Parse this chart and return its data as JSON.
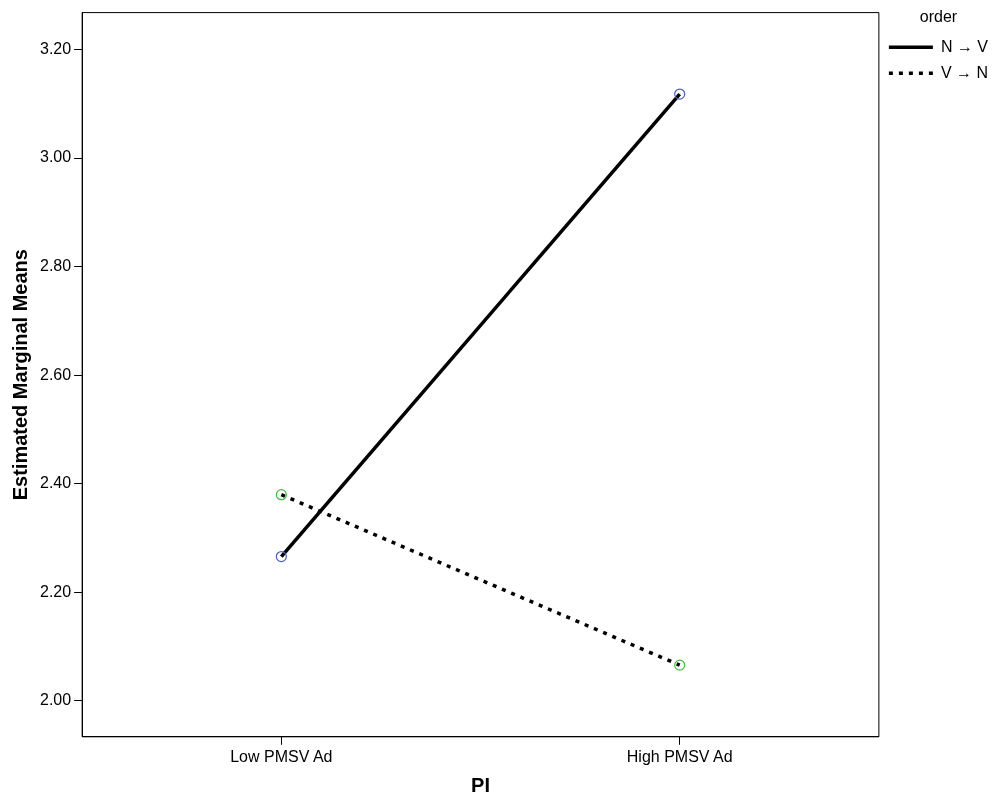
{
  "chart_data": {
    "type": "line",
    "xlabel": "PI",
    "ylabel": "Estimated Marginal Means",
    "legend_title": "order",
    "categories": [
      "Low PMSV Ad",
      "High PMSV Ad"
    ],
    "series": [
      {
        "name": "N → V",
        "color": "#000000",
        "colors": [
          "#4a5fbf",
          "#4a5fbf"
        ],
        "line_style": "solid",
        "values": [
          2.266,
          3.118
        ]
      },
      {
        "name": "V → N",
        "color": "#000000",
        "colors": [
          "#3fbf3f",
          "#3fbf3f"
        ],
        "line_style": "dotted",
        "values": [
          2.38,
          2.066
        ]
      }
    ],
    "ylim": [
      1.934,
      3.268
    ],
    "yticks": [
      {
        "value": 2,
        "label": "2.00"
      },
      {
        "value": 2.2,
        "label": "2.20"
      },
      {
        "value": 2.4,
        "label": "2.40"
      },
      {
        "value": 2.6,
        "label": "2.60"
      },
      {
        "value": 2.8,
        "label": "2.80"
      },
      {
        "value": 3,
        "label": "3.00"
      },
      {
        "value": 3.2,
        "label": "3.20"
      }
    ],
    "grid": false,
    "legend": "top right",
    "marker": "circle"
  }
}
